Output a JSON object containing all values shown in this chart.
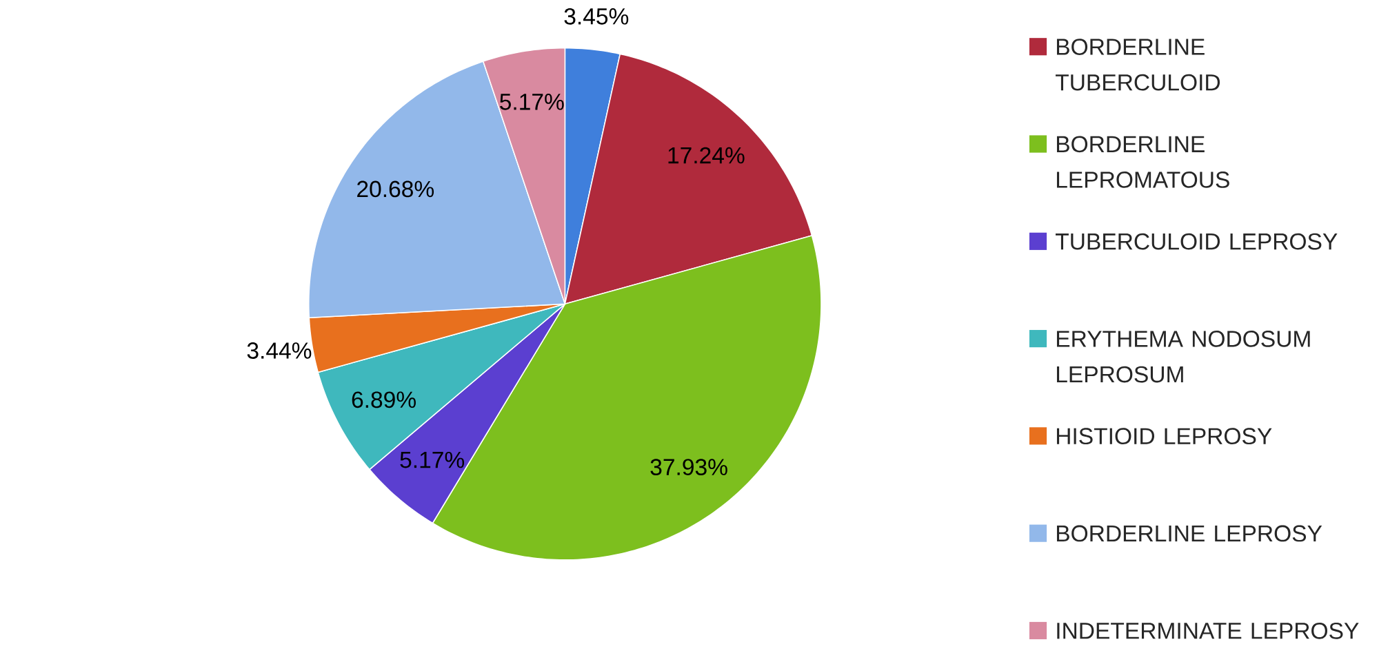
{
  "chart_data": {
    "type": "pie",
    "categories": [
      null,
      "BORDERLINE TUBERCULOID",
      "BORDERLINE LEPROMATOUS",
      "TUBERCULOID LEPROSY",
      "ERYTHEMA NODOSUM LEPROSUM",
      "HISTIOID LEPROSY",
      "BORDERLINE LEPROSY",
      "INDETERMINATE LEPROSY"
    ],
    "values": [
      3.45,
      17.24,
      37.93,
      5.17,
      6.89,
      3.44,
      20.68,
      5.17
    ],
    "colors": [
      "#3f7fdc",
      "#b02a3c",
      "#7dbf1e",
      "#5b3fd0",
      "#3fb8bd",
      "#e8701e",
      "#92b8ea",
      "#d98aa0"
    ],
    "value_labels": [
      "3.45%",
      "17.24%",
      "37.93%",
      "5.17%",
      "6.89%",
      "3.44%",
      "20.68%",
      "5.17%"
    ],
    "legend": "right"
  }
}
